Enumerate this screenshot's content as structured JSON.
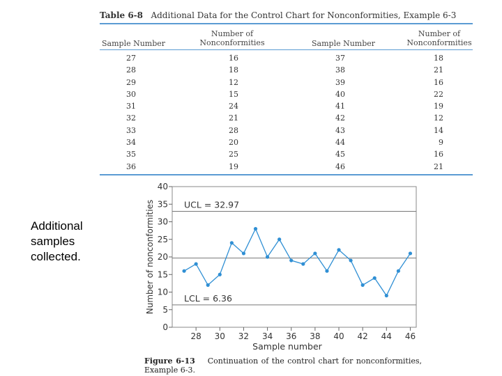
{
  "side_note": "Additional samples collected.",
  "table": {
    "label": "Table 6-8",
    "title": "Additional Data for the Control Chart for Nonconformities, Example 6-3",
    "headers": {
      "sample_number_1": "Sample Number",
      "nonconf_1_line1": "Number of",
      "nonconf_1_line2": "Nonconformities",
      "sample_number_2": "Sample Number",
      "nonconf_2_line1": "Number of",
      "nonconf_2_line2": "Nonconformities"
    },
    "rows": [
      {
        "s1": "27",
        "n1": "16",
        "s2": "37",
        "n2": "18"
      },
      {
        "s1": "28",
        "n1": "18",
        "s2": "38",
        "n2": "21"
      },
      {
        "s1": "29",
        "n1": "12",
        "s2": "39",
        "n2": "16"
      },
      {
        "s1": "30",
        "n1": "15",
        "s2": "40",
        "n2": "22"
      },
      {
        "s1": "31",
        "n1": "24",
        "s2": "41",
        "n2": "19"
      },
      {
        "s1": "32",
        "n1": "21",
        "s2": "42",
        "n2": "12"
      },
      {
        "s1": "33",
        "n1": "28",
        "s2": "43",
        "n2": "14"
      },
      {
        "s1": "34",
        "n1": "20",
        "s2": "44",
        "n2": "9"
      },
      {
        "s1": "35",
        "n1": "25",
        "s2": "45",
        "n2": "16"
      },
      {
        "s1": "36",
        "n1": "19",
        "s2": "46",
        "n2": "21"
      }
    ]
  },
  "figure": {
    "label": "Figure 6-13",
    "caption": "Continuation of the control chart for nonconformities, Example 6-3."
  },
  "chart_data": {
    "type": "line",
    "title": "",
    "xlabel": "Sample number",
    "ylabel": "Number of nonconformities",
    "x": [
      27,
      28,
      29,
      30,
      31,
      32,
      33,
      34,
      35,
      36,
      37,
      38,
      39,
      40,
      41,
      42,
      43,
      44,
      45,
      46
    ],
    "series": [
      {
        "name": "Nonconformities",
        "values": [
          16,
          18,
          12,
          15,
          24,
          21,
          28,
          20,
          25,
          19,
          18,
          21,
          16,
          22,
          19,
          12,
          14,
          9,
          16,
          21
        ]
      }
    ],
    "xticks": [
      28,
      30,
      32,
      34,
      36,
      38,
      40,
      42,
      44,
      46
    ],
    "yticks": [
      0,
      5,
      10,
      15,
      20,
      25,
      30,
      35,
      40
    ],
    "xlim": [
      26,
      46.5
    ],
    "ylim": [
      0,
      40
    ],
    "control_lines": [
      {
        "name": "UCL",
        "value": 32.97,
        "label": "UCL = 32.97"
      },
      {
        "name": "CL",
        "value": 19.67,
        "label": ""
      },
      {
        "name": "LCL",
        "value": 6.36,
        "label": "LCL = 6.36"
      }
    ],
    "color": "#2f8fd4"
  }
}
